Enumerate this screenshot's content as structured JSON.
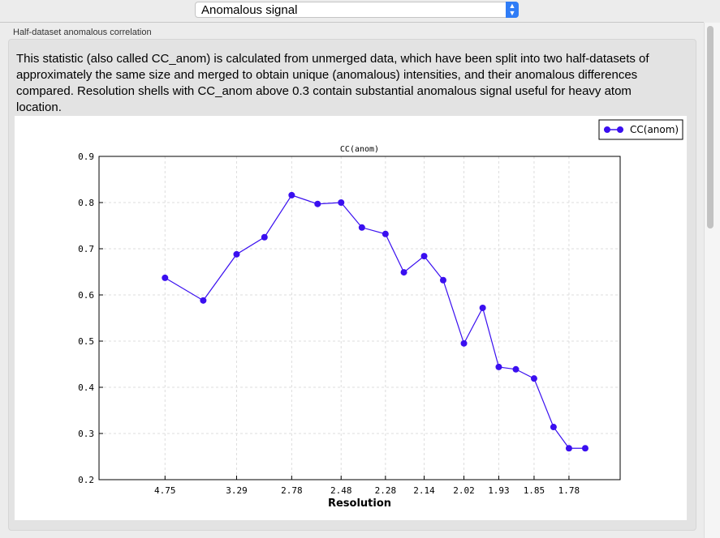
{
  "toolbar": {
    "selected_view": "Anomalous signal"
  },
  "group": {
    "title": "Half-dataset anomalous correlation"
  },
  "description": "This statistic (also called CC_anom) is calculated from unmerged data, which have been split into two half-datasets of approximately the same size and merged to obtain unique (anomalous) intensities, and their anomalous differences compared.  Resolution shells with CC_anom above 0.3 contain substantial anomalous signal useful for heavy atom location.",
  "chart_data": {
    "type": "line",
    "title": "CC(anom)",
    "xlabel": "Resolution",
    "ylabel": "",
    "x_scale": "1/d^2 (reciprocal square of resolution)",
    "xticks": [
      4.75,
      3.29,
      2.78,
      2.48,
      2.28,
      2.14,
      2.02,
      1.93,
      1.85,
      1.78
    ],
    "xtick_labels": [
      "4.75",
      "3.29",
      "2.78",
      "2.48",
      "2.28",
      "2.14",
      "2.02",
      "1.93",
      "1.85",
      "1.78"
    ],
    "ylim": [
      0.2,
      0.9
    ],
    "yticks": [
      "0.9",
      "0.8",
      "0.7",
      "0.6",
      "0.5",
      "0.4",
      "0.3",
      "0.2"
    ],
    "grid": true,
    "legend": "top-right",
    "series": [
      {
        "name": "CC(anom)",
        "color": "#3a0ff0",
        "x": [
          4.75,
          3.78,
          3.29,
          3.0,
          2.78,
          2.61,
          2.48,
          2.38,
          2.28,
          2.21,
          2.14,
          2.08,
          2.02,
          1.97,
          1.93,
          1.89,
          1.85,
          1.81,
          1.78,
          1.75
        ],
        "values": [
          0.637,
          0.588,
          0.688,
          0.725,
          0.816,
          0.797,
          0.8,
          0.746,
          0.732,
          0.649,
          0.684,
          0.632,
          0.495,
          0.572,
          0.444,
          0.439,
          0.419,
          0.314,
          0.268,
          0.268
        ]
      }
    ]
  }
}
